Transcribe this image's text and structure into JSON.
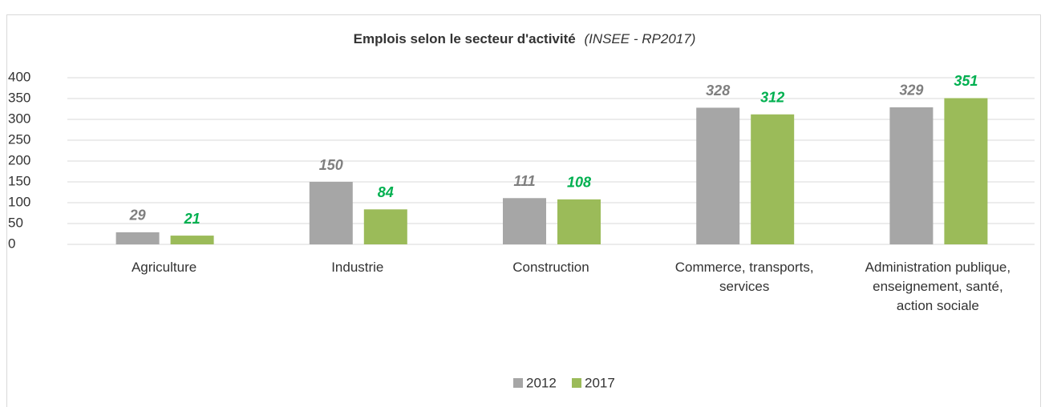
{
  "chart_data": {
    "type": "bar",
    "title": "Emplois selon le secteur d'activité",
    "subtitle": "(INSEE - RP2017)",
    "categories": [
      "Agriculture",
      "Industrie",
      "Construction",
      "Commerce, transports, services",
      "Administration publique, enseignement, santé, action sociale"
    ],
    "series": [
      {
        "name": "2012",
        "color": "#a6a6a6",
        "label_color": "#7f7f7f",
        "values": [
          29,
          150,
          111,
          328,
          329
        ]
      },
      {
        "name": "2017",
        "color": "#9bbb59",
        "label_color": "#00b050",
        "values": [
          21,
          84,
          108,
          312,
          351
        ]
      }
    ],
    "ylim": [
      0,
      400
    ],
    "yticks": [
      0,
      50,
      100,
      150,
      200,
      250,
      300,
      350,
      400
    ],
    "grid": true,
    "legend": "bottom"
  }
}
